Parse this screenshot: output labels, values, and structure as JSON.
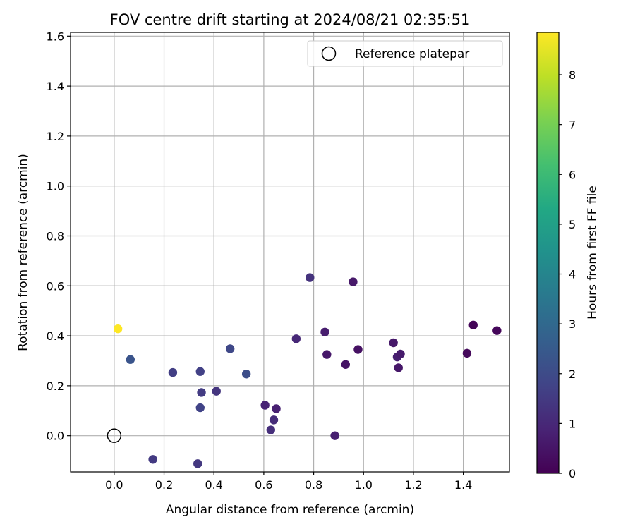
{
  "chart_data": {
    "type": "scatter",
    "title": "FOV centre drift starting at 2024/08/21 02:35:51",
    "xlabel": "Angular distance from reference (arcmin)",
    "ylabel": "Rotation from reference (arcmin)",
    "xlim": [
      -0.175,
      1.585
    ],
    "ylim": [
      -0.145,
      1.615
    ],
    "xticks": [
      "0.0",
      "0.2",
      "0.4",
      "0.6",
      "0.8",
      "1.0",
      "1.2",
      "1.4"
    ],
    "yticks": [
      "0.0",
      "0.2",
      "0.4",
      "0.6",
      "0.8",
      "1.0",
      "1.2",
      "1.4",
      "1.6"
    ],
    "grid": true,
    "legend": {
      "placement": "top-right",
      "label": "Reference platepar"
    },
    "reference_point": {
      "x": 0.0,
      "y": 0.0
    },
    "colorbar": {
      "label": "Hours from first FF file",
      "colormap": "viridis",
      "range": [
        0,
        8.85
      ],
      "ticks": [
        "0",
        "1",
        "2",
        "3",
        "4",
        "5",
        "6",
        "7",
        "8"
      ]
    },
    "points": [
      {
        "x": 0.015,
        "y": 0.428,
        "hours": 8.85
      },
      {
        "x": 0.065,
        "y": 0.305,
        "hours": 2.3
      },
      {
        "x": 0.155,
        "y": -0.095,
        "hours": 1.5
      },
      {
        "x": 0.235,
        "y": 0.253,
        "hours": 1.6
      },
      {
        "x": 0.335,
        "y": -0.112,
        "hours": 1.45
      },
      {
        "x": 0.345,
        "y": 0.257,
        "hours": 1.7
      },
      {
        "x": 0.345,
        "y": 0.112,
        "hours": 1.75
      },
      {
        "x": 0.35,
        "y": 0.173,
        "hours": 1.55
      },
      {
        "x": 0.41,
        "y": 0.178,
        "hours": 1.35
      },
      {
        "x": 0.465,
        "y": 0.348,
        "hours": 1.9
      },
      {
        "x": 0.53,
        "y": 0.247,
        "hours": 2.1
      },
      {
        "x": 0.605,
        "y": 0.122,
        "hours": 0.85
      },
      {
        "x": 0.628,
        "y": 0.023,
        "hours": 1.2
      },
      {
        "x": 0.64,
        "y": 0.063,
        "hours": 1.1
      },
      {
        "x": 0.65,
        "y": 0.108,
        "hours": 0.8
      },
      {
        "x": 0.73,
        "y": 0.388,
        "hours": 1.0
      },
      {
        "x": 0.785,
        "y": 0.633,
        "hours": 1.3
      },
      {
        "x": 0.845,
        "y": 0.415,
        "hours": 0.7
      },
      {
        "x": 0.853,
        "y": 0.325,
        "hours": 0.55
      },
      {
        "x": 0.885,
        "y": 0.0,
        "hours": 0.75
      },
      {
        "x": 0.928,
        "y": 0.285,
        "hours": 0.45
      },
      {
        "x": 0.958,
        "y": 0.616,
        "hours": 0.6
      },
      {
        "x": 0.978,
        "y": 0.345,
        "hours": 0.4
      },
      {
        "x": 1.12,
        "y": 0.372,
        "hours": 0.6
      },
      {
        "x": 1.135,
        "y": 0.315,
        "hours": 0.75
      },
      {
        "x": 1.14,
        "y": 0.272,
        "hours": 0.55
      },
      {
        "x": 1.148,
        "y": 0.327,
        "hours": 0.65
      },
      {
        "x": 1.415,
        "y": 0.33,
        "hours": 0.2
      },
      {
        "x": 1.44,
        "y": 0.443,
        "hours": 0.1
      },
      {
        "x": 1.535,
        "y": 0.421,
        "hours": 0.15
      }
    ]
  }
}
